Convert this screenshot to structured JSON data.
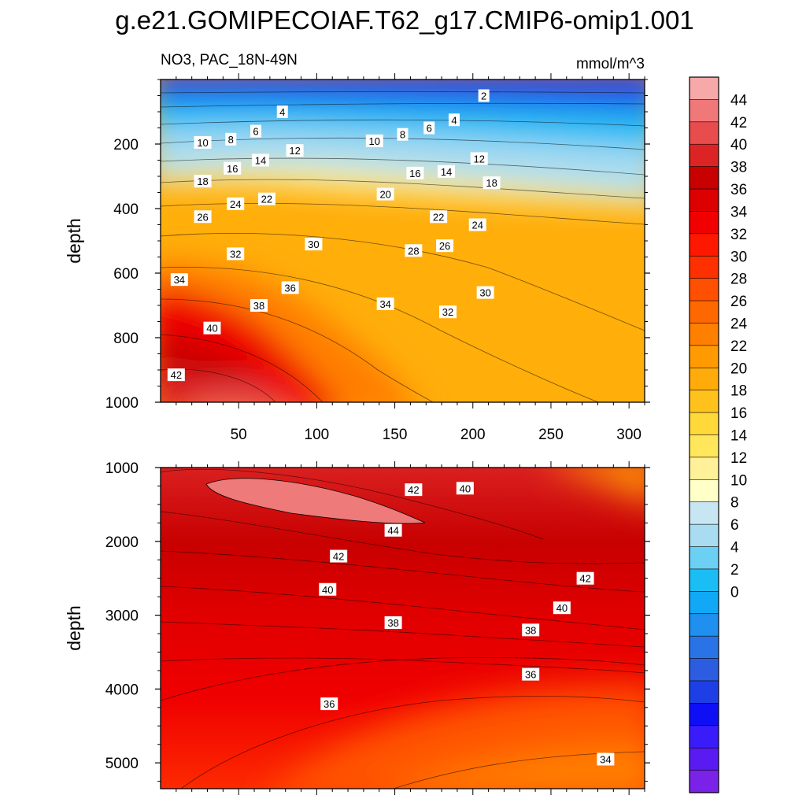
{
  "title": "g.e21.GOMIPECOIAF.T62_g17.CMIP6-omip1.001",
  "panel_left_label": "NO3, PAC_18N-49N",
  "units": "mmol/m^3",
  "colorbar": {
    "levels": [
      0,
      2,
      4,
      6,
      8,
      10,
      12,
      14,
      16,
      18,
      20,
      22,
      24,
      26,
      28,
      30,
      32,
      34,
      36,
      38,
      40,
      42,
      44
    ],
    "colors": [
      "#7b22e8",
      "#5a1af2",
      "#3a1bfa",
      "#0f0ff5",
      "#1f3fe6",
      "#2c5ce0",
      "#2a73e6",
      "#1f8ff0",
      "#11a8f5",
      "#1bbdf5",
      "#6cd0f5",
      "#a9dcf0",
      "#c8e6f2",
      "#ffffc8",
      "#fff09a",
      "#ffe65a",
      "#ffd83a",
      "#ffc21c",
      "#ffab0a",
      "#ff9a00",
      "#ff7f00",
      "#ff6800",
      "#ff4f00",
      "#ff3000",
      "#ff1800",
      "#f00000",
      "#dc0000",
      "#c80000",
      "#dc2424",
      "#e84c4c",
      "#f07878",
      "#f7a8a8"
    ],
    "tick_labels": [
      "0",
      "2",
      "4",
      "6",
      "8",
      "10",
      "12",
      "14",
      "16",
      "18",
      "20",
      "22",
      "24",
      "26",
      "28",
      "30",
      "32",
      "34",
      "36",
      "38",
      "40",
      "42",
      "44"
    ]
  },
  "chart_data": [
    {
      "type": "contour",
      "panel": "upper",
      "variable": "NO3",
      "region": "PAC_18N-49N",
      "units": "mmol/m^3",
      "xlim": [
        0,
        310
      ],
      "ylim": [
        1000,
        0
      ],
      "xticks": [
        50,
        100,
        150,
        200,
        250,
        300
      ],
      "yticks": [
        200,
        400,
        600,
        800,
        1000
      ],
      "ylabel": "depth",
      "contour_labels": [
        {
          "v": "2",
          "x": 207,
          "y": 50
        },
        {
          "v": "4",
          "x": 78,
          "y": 100
        },
        {
          "v": "4",
          "x": 188,
          "y": 125
        },
        {
          "v": "6",
          "x": 61,
          "y": 160
        },
        {
          "v": "6",
          "x": 172,
          "y": 150
        },
        {
          "v": "8",
          "x": 45,
          "y": 185
        },
        {
          "v": "8",
          "x": 155,
          "y": 170
        },
        {
          "v": "10",
          "x": 27,
          "y": 195
        },
        {
          "v": "10",
          "x": 137,
          "y": 190
        },
        {
          "v": "12",
          "x": 86,
          "y": 220
        },
        {
          "v": "12",
          "x": 204,
          "y": 245
        },
        {
          "v": "14",
          "x": 64,
          "y": 250
        },
        {
          "v": "14",
          "x": 183,
          "y": 285
        },
        {
          "v": "16",
          "x": 46,
          "y": 275
        },
        {
          "v": "16",
          "x": 163,
          "y": 290
        },
        {
          "v": "18",
          "x": 27,
          "y": 315
        },
        {
          "v": "18",
          "x": 212,
          "y": 320
        },
        {
          "v": "20",
          "x": 144,
          "y": 355
        },
        {
          "v": "22",
          "x": 68,
          "y": 370
        },
        {
          "v": "22",
          "x": 178,
          "y": 425
        },
        {
          "v": "24",
          "x": 48,
          "y": 385
        },
        {
          "v": "24",
          "x": 203,
          "y": 450
        },
        {
          "v": "26",
          "x": 27,
          "y": 425
        },
        {
          "v": "26",
          "x": 182,
          "y": 515
        },
        {
          "v": "28",
          "x": 162,
          "y": 530
        },
        {
          "v": "30",
          "x": 98,
          "y": 510
        },
        {
          "v": "30",
          "x": 208,
          "y": 660
        },
        {
          "v": "32",
          "x": 48,
          "y": 540
        },
        {
          "v": "32",
          "x": 184,
          "y": 720
        },
        {
          "v": "34",
          "x": 12,
          "y": 620
        },
        {
          "v": "34",
          "x": 144,
          "y": 695
        },
        {
          "v": "36",
          "x": 83,
          "y": 645
        },
        {
          "v": "38",
          "x": 63,
          "y": 700
        },
        {
          "v": "40",
          "x": 33,
          "y": 770
        },
        {
          "v": "42",
          "x": 10,
          "y": 915
        }
      ]
    },
    {
      "type": "contour",
      "panel": "lower",
      "variable": "NO3",
      "region": "PAC_18N-49N",
      "units": "mmol/m^3",
      "xlim": [
        0,
        310
      ],
      "ylim": [
        5350,
        1000
      ],
      "yticks": [
        1000,
        2000,
        3000,
        4000,
        5000
      ],
      "ylabel": "depth",
      "contour_labels": [
        {
          "v": "42",
          "x": 162,
          "y": 1300
        },
        {
          "v": "40",
          "x": 195,
          "y": 1280
        },
        {
          "v": "44",
          "x": 149,
          "y": 1850
        },
        {
          "v": "42",
          "x": 114,
          "y": 2200
        },
        {
          "v": "42",
          "x": 272,
          "y": 2500
        },
        {
          "v": "40",
          "x": 107,
          "y": 2650
        },
        {
          "v": "40",
          "x": 257,
          "y": 2900
        },
        {
          "v": "38",
          "x": 149,
          "y": 3100
        },
        {
          "v": "38",
          "x": 237,
          "y": 3200
        },
        {
          "v": "36",
          "x": 237,
          "y": 3800
        },
        {
          "v": "36",
          "x": 108,
          "y": 4200
        },
        {
          "v": "34",
          "x": 285,
          "y": 4950
        }
      ]
    }
  ]
}
